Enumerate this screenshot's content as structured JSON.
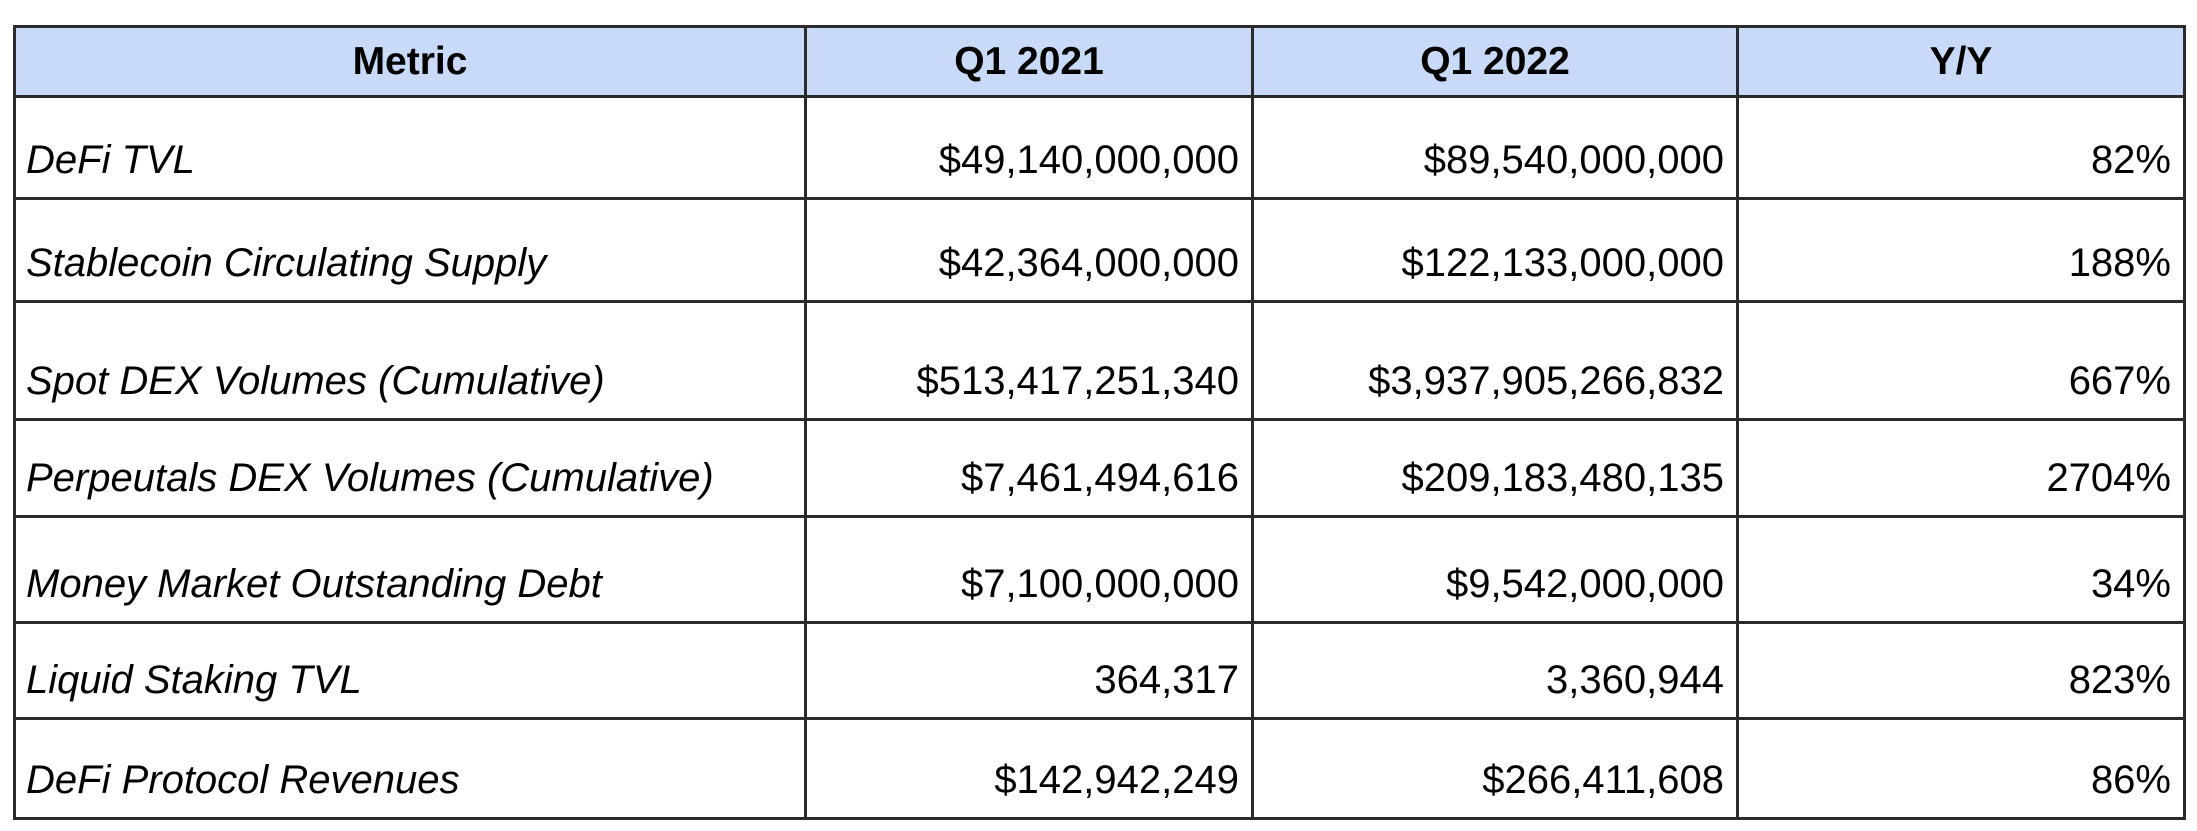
{
  "table": {
    "headers": [
      "Metric",
      "Q1 2021",
      "Q1 2022",
      "Y/Y"
    ],
    "rows": [
      {
        "metric": "DeFi TVL",
        "q1_2021": "$49,140,000,000",
        "q1_2022": "$89,540,000,000",
        "yy": "82%"
      },
      {
        "metric": "Stablecoin Circulating Supply",
        "q1_2021": "$42,364,000,000",
        "q1_2022": "$122,133,000,000",
        "yy": "188%"
      },
      {
        "metric": "Spot DEX Volumes (Cumulative)",
        "q1_2021": "$513,417,251,340",
        "q1_2022": "$3,937,905,266,832",
        "yy": "667%"
      },
      {
        "metric": "Perpeutals DEX Volumes (Cumulative)",
        "q1_2021": "$7,461,494,616",
        "q1_2022": "$209,183,480,135",
        "yy": "2704%"
      },
      {
        "metric": "Money Market Outstanding Debt",
        "q1_2021": "$7,100,000,000",
        "q1_2022": "$9,542,000,000",
        "yy": "34%"
      },
      {
        "metric": "Liquid Staking TVL",
        "q1_2021": "364,317",
        "q1_2022": "3,360,944",
        "yy": "823%"
      },
      {
        "metric": "DeFi Protocol Revenues",
        "q1_2021": "$142,942,249",
        "q1_2022": "$266,411,608",
        "yy": "86%"
      }
    ]
  },
  "colors": {
    "header_background": "#c9daf8",
    "border": "#2b2b2b",
    "text": "#000000"
  }
}
